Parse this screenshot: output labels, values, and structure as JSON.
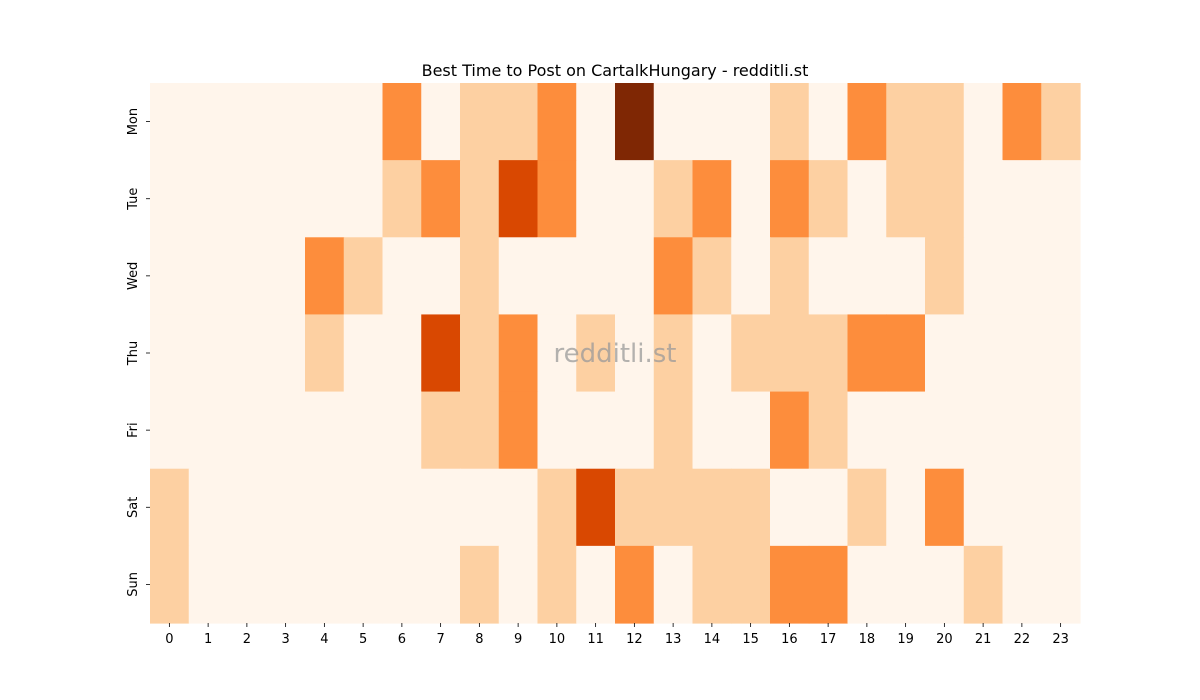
{
  "chart_data": {
    "type": "heatmap",
    "title": "Best Time to Post on CartalkHungary - redditli.st",
    "watermark": "redditli.st",
    "x_categories": [
      "0",
      "1",
      "2",
      "3",
      "4",
      "5",
      "6",
      "7",
      "8",
      "9",
      "10",
      "11",
      "12",
      "13",
      "14",
      "15",
      "16",
      "17",
      "18",
      "19",
      "20",
      "21",
      "22",
      "23"
    ],
    "y_categories": [
      "Mon",
      "Tue",
      "Wed",
      "Thu",
      "Fri",
      "Sat",
      "Sun"
    ],
    "colorscale": [
      "#fff5eb",
      "#fdd0a2",
      "#fd8d3c",
      "#d94801",
      "#7f2704"
    ],
    "values": [
      [
        0,
        0,
        0,
        0,
        0,
        0,
        2,
        0,
        1,
        1,
        2,
        0,
        4,
        0,
        0,
        0,
        1,
        0,
        2,
        1,
        1,
        0,
        2,
        1
      ],
      [
        0,
        0,
        0,
        0,
        0,
        0,
        1,
        2,
        1,
        3,
        2,
        0,
        0,
        1,
        2,
        0,
        2,
        1,
        0,
        1,
        1,
        0,
        0,
        0
      ],
      [
        0,
        0,
        0,
        0,
        2,
        1,
        0,
        0,
        1,
        0,
        0,
        0,
        0,
        2,
        1,
        0,
        1,
        0,
        0,
        0,
        1,
        0,
        0,
        0
      ],
      [
        0,
        0,
        0,
        0,
        1,
        0,
        0,
        3,
        1,
        2,
        0,
        1,
        0,
        1,
        0,
        1,
        1,
        1,
        2,
        2,
        0,
        0,
        0,
        0
      ],
      [
        0,
        0,
        0,
        0,
        0,
        0,
        0,
        1,
        1,
        2,
        0,
        0,
        0,
        1,
        0,
        0,
        2,
        1,
        0,
        0,
        0,
        0,
        0,
        0
      ],
      [
        1,
        0,
        0,
        0,
        0,
        0,
        0,
        0,
        0,
        0,
        1,
        3,
        1,
        1,
        1,
        1,
        0,
        0,
        1,
        0,
        2,
        0,
        0,
        0
      ],
      [
        1,
        0,
        0,
        0,
        0,
        0,
        0,
        0,
        1,
        0,
        1,
        0,
        2,
        0,
        1,
        1,
        2,
        2,
        0,
        0,
        0,
        1,
        0,
        0
      ]
    ],
    "xlabel": "",
    "ylabel": "",
    "colorbar": false,
    "grid": false
  }
}
